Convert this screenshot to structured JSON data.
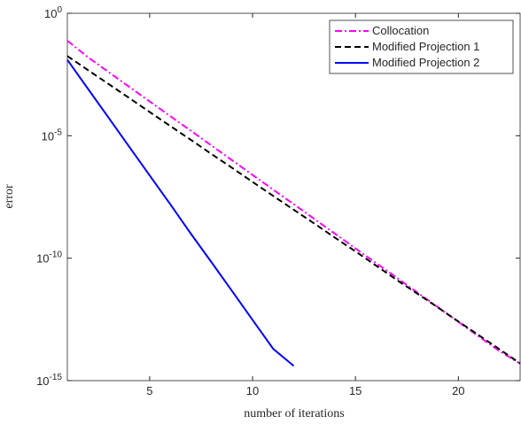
{
  "chart_data": {
    "type": "line",
    "xlabel": "number of iterations",
    "ylabel": "error",
    "x": [
      1,
      2,
      3,
      4,
      5,
      6,
      7,
      8,
      9,
      10,
      11,
      12,
      13,
      14,
      15,
      16,
      17,
      18,
      19,
      20,
      21,
      22,
      23
    ],
    "series": [
      {
        "name": "Collocation",
        "color": "#ff00ff",
        "linestyle": "dashdot",
        "values": [
          0.076,
          0.016,
          0.004,
          0.001,
          0.00025,
          6.3e-05,
          1.6e-05,
          4e-06,
          1e-06,
          2.5e-07,
          6.3e-08,
          1.6e-08,
          4e-09,
          1e-09,
          2.5e-10,
          6.3e-11,
          1.6e-11,
          4e-12,
          1e-12,
          2.5e-13,
          6.3e-14,
          1.6e-14,
          5e-15
        ]
      },
      {
        "name": "Modified Projection 1",
        "color": "#000000",
        "linestyle": "dashed",
        "values": [
          0.018,
          0.0048,
          0.0013,
          0.00035,
          9.3e-05,
          2.5e-05,
          6.8e-06,
          1.8e-06,
          4.9e-07,
          1.3e-07,
          3.5e-08,
          9.5e-09,
          2.6e-09,
          6.9e-10,
          1.9e-10,
          5e-11,
          1.3e-11,
          3.6e-12,
          9.8e-13,
          2.6e-13,
          7.1e-14,
          1.9e-14,
          5.1e-15
        ]
      },
      {
        "name": "Modified Projection 2",
        "color": "#0000ff",
        "linestyle": "solid",
        "values": [
          0.0126,
          0.00083,
          5.5e-05,
          3.6e-06,
          2.4e-07,
          1.6e-08,
          1e-09,
          6.9e-11,
          4.6e-12,
          3e-13,
          2e-14,
          4e-15,
          null,
          null,
          null,
          null,
          null,
          null,
          null,
          null,
          null,
          null,
          null
        ]
      }
    ],
    "xlim": [
      1,
      23
    ],
    "xticks": [
      5,
      10,
      15,
      20
    ],
    "ylim": [
      1e-15,
      1
    ],
    "ylog": true,
    "yticks": [
      {
        "value": 1,
        "label": "10^0"
      },
      {
        "value": 1e-05,
        "label": "10^-5"
      },
      {
        "value": 1e-10,
        "label": "10^-10"
      },
      {
        "value": 1e-15,
        "label": "10^-15"
      }
    ],
    "grid": false,
    "legend": "upper right"
  }
}
